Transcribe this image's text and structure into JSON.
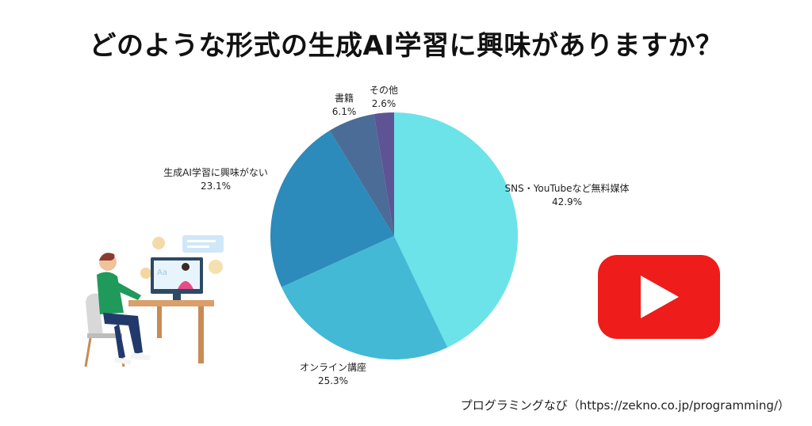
{
  "title": "どのような形式の生成AI学習に興味がありますか？",
  "credit": "プログラミングなび（https://zekno.co.jp/programming/）",
  "icons": {
    "illustration": "person-at-computer-illustration",
    "logo": "youtube-logo"
  },
  "colors": {
    "youtube_red": "#ee1c1b",
    "youtube_play": "#ffffff"
  },
  "chart_data": {
    "type": "pie",
    "title": "どのような形式の生成AI学習に興味がありますか？",
    "start_angle_deg": 0,
    "direction": "clockwise",
    "slices": [
      {
        "label": "SNS・YouTubeなど無料媒体",
        "value": 42.9,
        "display": "42.9%",
        "color": "#6be3e9"
      },
      {
        "label": "オンライン講座",
        "value": 25.3,
        "display": "25.3%",
        "color": "#44b9d6"
      },
      {
        "label": "生成AI学習に興味がない",
        "value": 23.1,
        "display": "23.1%",
        "color": "#2c8bbb"
      },
      {
        "label": "書籍",
        "value": 6.1,
        "display": "6.1%",
        "color": "#4a6c96"
      },
      {
        "label": "その他",
        "value": 2.6,
        "display": "2.6%",
        "color": "#5e5494"
      }
    ]
  }
}
